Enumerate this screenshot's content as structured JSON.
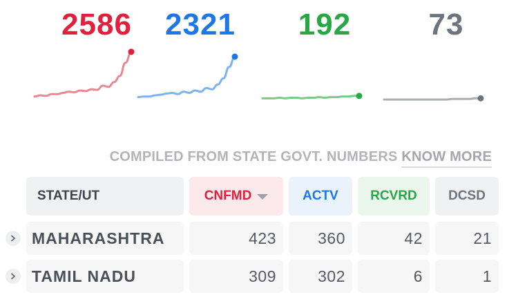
{
  "colors": {
    "confirmed": "#e0203c",
    "confirmed_light": "#e98790",
    "active": "#1d78e6",
    "active_light": "#7cb2ee",
    "recovered": "#28a745",
    "recovered_light": "#77cc83",
    "deceased": "#6c757d",
    "deceased_light": "#a9aeb5",
    "header_bg": "#f0f1f3",
    "header_confirmed_bg": "#fbe9ec",
    "header_active_bg": "#eaf2fc",
    "header_recovered_bg": "#ebf6ed"
  },
  "stats": [
    {
      "key": "confirmed",
      "value": "2586",
      "trend": [
        6,
        8,
        7,
        10,
        10,
        12,
        14,
        13,
        16,
        15,
        18,
        17,
        24,
        22,
        30,
        40,
        62,
        80
      ]
    },
    {
      "key": "active",
      "value": "2321",
      "trend": [
        5,
        6,
        6,
        8,
        9,
        11,
        12,
        10,
        14,
        12,
        16,
        14,
        20,
        18,
        26,
        36,
        55,
        72
      ]
    },
    {
      "key": "recovered",
      "value": "192",
      "trend": [
        3,
        3,
        3,
        4,
        3,
        4,
        4,
        3,
        4,
        4,
        5,
        4,
        5,
        5,
        6,
        6,
        7,
        7
      ]
    },
    {
      "key": "deceased",
      "value": "73",
      "trend": [
        1,
        1,
        1,
        1,
        1,
        1,
        1,
        1,
        1,
        1,
        1,
        1,
        2,
        2,
        2,
        2,
        3,
        3
      ]
    }
  ],
  "compiled_note": {
    "text": "COMPILED FROM STATE GOVT. NUMBERS",
    "link": "KNOW MORE"
  },
  "table": {
    "headers": {
      "state": "STATE/UT",
      "confirmed": "CNFMD",
      "active": "ACTV",
      "recovered": "RCVRD",
      "deceased": "DCSD"
    },
    "rows": [
      {
        "state": "MAHARASHTRA",
        "confirmed": "423",
        "active": "360",
        "recovered": "42",
        "deceased": "21"
      },
      {
        "state": "TAMIL NADU",
        "confirmed": "309",
        "active": "302",
        "recovered": "6",
        "deceased": "1"
      }
    ]
  }
}
